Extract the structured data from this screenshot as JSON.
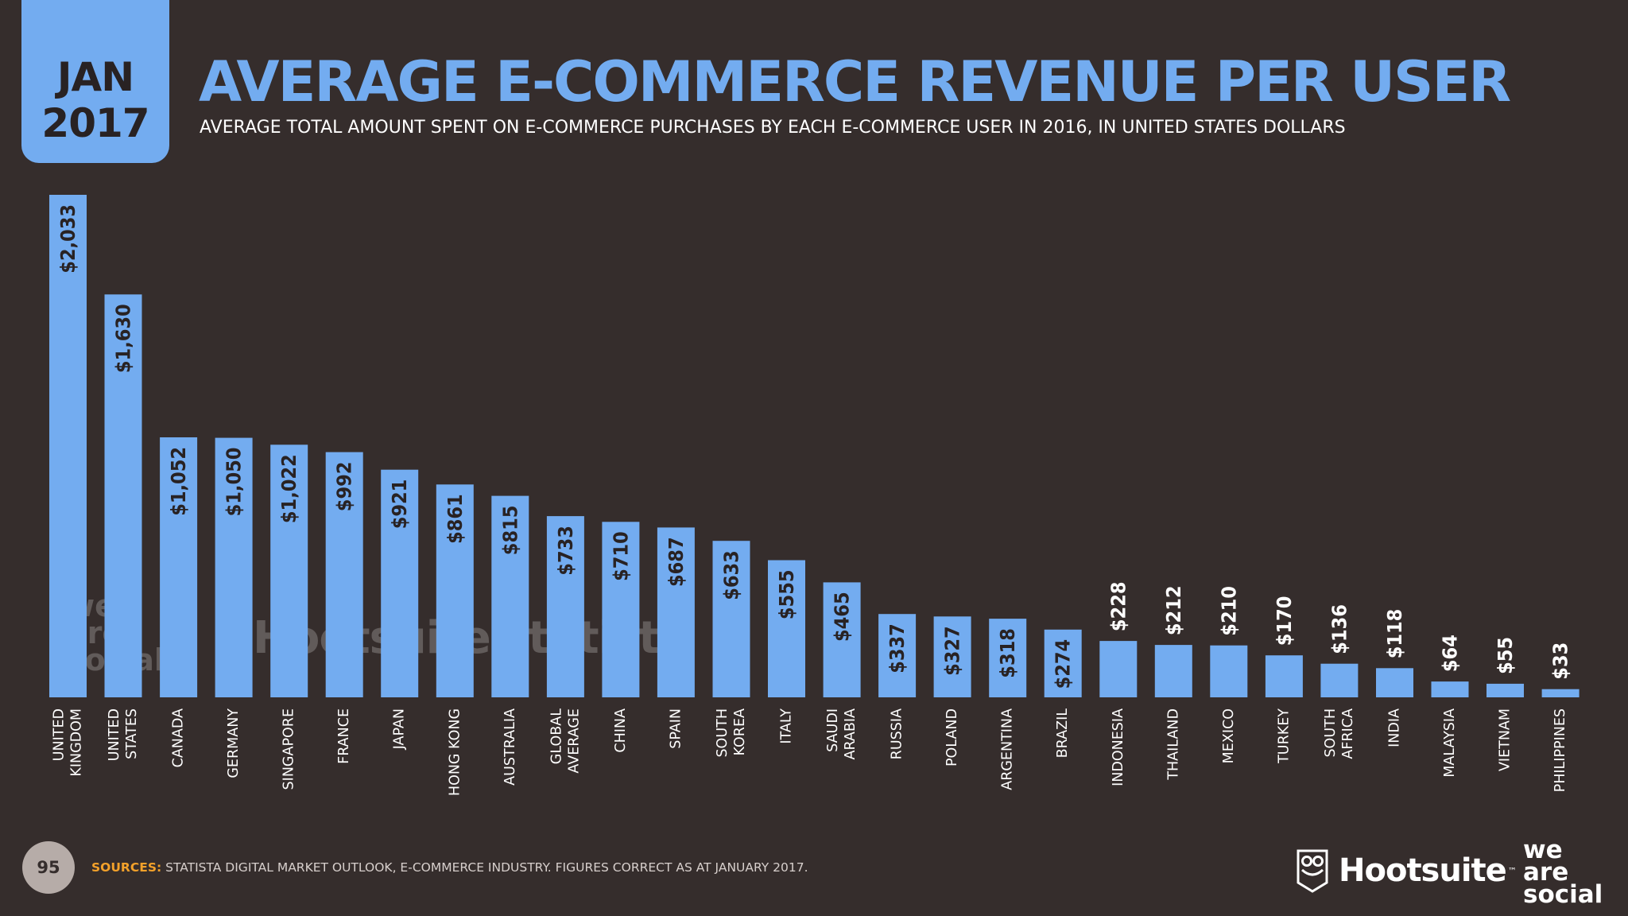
{
  "header": {
    "date_month": "JAN",
    "date_year": "2017",
    "title": "AVERAGE E-COMMERCE REVENUE PER USER",
    "subtitle": "AVERAGE TOTAL AMOUNT SPENT ON E-COMMERCE PURCHASES BY EACH E-COMMERCE USER IN 2016, IN UNITED STATES DOLLARS"
  },
  "footer": {
    "page_number": "95",
    "sources_label": "SOURCES:",
    "sources_text": "STATISTA DIGITAL MARKET OUTLOOK, E-COMMERCE INDUSTRY. FIGURES CORRECT AS AT JANUARY 2017.",
    "hootsuite_logo": "Hootsuite",
    "tm_mark": "™",
    "was_line1": "we",
    "was_line2": "are",
    "was_line3": "social"
  },
  "watermarks": {
    "was_line1": "we",
    "was_line2": "are",
    "was_line3": "social",
    "hootsuite": "Hootsuite",
    "statista": "statista"
  },
  "colors": {
    "background": "#352d2c",
    "bar": "#73acf0",
    "title": "#73acf0",
    "label_dark": "#282223",
    "label_light": "#ffffff",
    "sources_label": "#f3a12a"
  },
  "chart_data": {
    "type": "bar",
    "title": "AVERAGE E-COMMERCE REVENUE PER USER",
    "xlabel": "",
    "ylabel": "",
    "ylim": [
      0,
      2033
    ],
    "categories": [
      [
        "UNITED",
        "KINGDOM"
      ],
      [
        "UNITED",
        "STATES"
      ],
      [
        "CANADA"
      ],
      [
        "GERMANY"
      ],
      [
        "SINGAPORE"
      ],
      [
        "FRANCE"
      ],
      [
        "JAPAN"
      ],
      [
        "HONG KONG"
      ],
      [
        "AUSTRALIA"
      ],
      [
        "GLOBAL",
        "AVERAGE"
      ],
      [
        "CHINA"
      ],
      [
        "SPAIN"
      ],
      [
        "SOUTH",
        "KOREA"
      ],
      [
        "ITALY"
      ],
      [
        "SAUDI",
        "ARABIA"
      ],
      [
        "RUSSIA"
      ],
      [
        "POLAND"
      ],
      [
        "ARGENTINA"
      ],
      [
        "BRAZIL"
      ],
      [
        "INDONESIA"
      ],
      [
        "THAILAND"
      ],
      [
        "MEXICO"
      ],
      [
        "TURKEY"
      ],
      [
        "SOUTH",
        "AFRICA"
      ],
      [
        "INDIA"
      ],
      [
        "MALAYSIA"
      ],
      [
        "VIETNAM"
      ],
      [
        "PHILIPPINES"
      ]
    ],
    "values": [
      2033,
      1630,
      1052,
      1050,
      1022,
      992,
      921,
      861,
      815,
      733,
      710,
      687,
      633,
      555,
      465,
      337,
      327,
      318,
      274,
      228,
      212,
      210,
      170,
      136,
      118,
      64,
      55,
      33
    ],
    "value_labels": [
      "$2,033",
      "$1,630",
      "$1,052",
      "$1,050",
      "$1,022",
      "$992",
      "$921",
      "$861",
      "$815",
      "$733",
      "$710",
      "$687",
      "$633",
      "$555",
      "$465",
      "$337",
      "$327",
      "$318",
      "$274",
      "$228",
      "$212",
      "$210",
      "$170",
      "$136",
      "$118",
      "$64",
      "$55",
      "$33"
    ],
    "legend": "none",
    "grid": false
  }
}
